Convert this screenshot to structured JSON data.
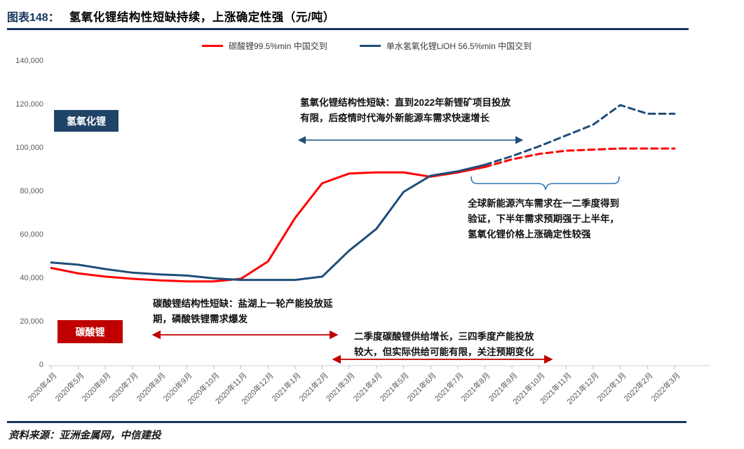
{
  "header": {
    "figure_label": "图表148：",
    "title": "氢氧化锂结构性短缺持续，上涨确定性强（元/吨）"
  },
  "legend": [
    {
      "label": "碳酸锂99.5%min 中国交到",
      "color": "#FF0000"
    },
    {
      "label": "单水氢氧化锂LiOH 56.5%min 中国交到",
      "color": "#1F4E79"
    }
  ],
  "series_boxes": {
    "hydroxide": "氢氧化锂",
    "carbonate": "碳酸锂"
  },
  "annotations": {
    "hydroxide": "氢氧化锂结构性短缺：直到2022年新锂矿项目投放\n有限，后疫情时代海外新能源车需求快速增长",
    "brace": "全球新能源汽车需求在一二季度得到\n验证，下半年需求预期强于上半年，\n氢氧化锂价格上涨确定性较强",
    "carbonate": "碳酸锂结构性短缺：盐湖上一轮产能投放延\n期，磷酸铁锂需求爆发",
    "supply": "二季度碳酸锂供给增长，三四季度产能投放\n较大，但实际供给可能有限，关注预期变化"
  },
  "source": "资料来源：亚洲金属网，中信建投",
  "colors": {
    "navy": "#17375E",
    "line_red": "#FF0000",
    "line_blue": "#1F4E79",
    "box_red": "#C00000",
    "arrow_red": "#C00000",
    "arrow_blue": "#1F4E79",
    "brace_blue": "#2E74B5",
    "axis_gray": "#D9D9D9",
    "tick_gray": "#BFBFBF"
  },
  "chart_data": {
    "type": "line",
    "title": "氢氧化锂结构性短缺持续，上涨确定性强（元/吨）",
    "xlabel": "",
    "ylabel": "元/吨",
    "ylim": [
      0,
      140000
    ],
    "y_ticks": [
      0,
      20000,
      40000,
      60000,
      80000,
      100000,
      120000,
      140000
    ],
    "grid": false,
    "legend_position": "top",
    "categories": [
      "2020年4月",
      "2020年5月",
      "2020年6月",
      "2020年7月",
      "2020年8月",
      "2020年9月",
      "2020年10月",
      "2020年11月",
      "2020年12月",
      "2021年1月",
      "2021年2月",
      "2021年3月",
      "2021年4月",
      "2021年5月",
      "2021年6月",
      "2021年7月",
      "2021年8月",
      "2021年9月",
      "2021年10月",
      "2021年11月",
      "2021年12月",
      "2022年1月",
      "2022年2月",
      "2022年3月"
    ],
    "series": [
      {
        "name": "碳酸锂99.5%min 中国交到",
        "color": "#FF0000",
        "solid_until_index": 16,
        "dashed_after_is_forecast": true,
        "values": [
          45000,
          42500,
          41000,
          40000,
          39300,
          38800,
          38800,
          40000,
          48000,
          68000,
          84000,
          88500,
          89000,
          89000,
          87000,
          89000,
          91500,
          95000,
          97500,
          99000,
          99500,
          100000,
          100000,
          100000
        ]
      },
      {
        "name": "单水氢氧化锂LiOH 56.5%min 中国交到",
        "color": "#1F4E79",
        "solid_until_index": 16,
        "dashed_after_is_forecast": true,
        "values": [
          47500,
          46500,
          44500,
          42800,
          42000,
          41500,
          40200,
          39500,
          39500,
          39500,
          41000,
          53000,
          63000,
          80000,
          87500,
          89500,
          92500,
          96500,
          101000,
          106000,
          111000,
          120000,
          116000,
          116000
        ]
      }
    ]
  }
}
